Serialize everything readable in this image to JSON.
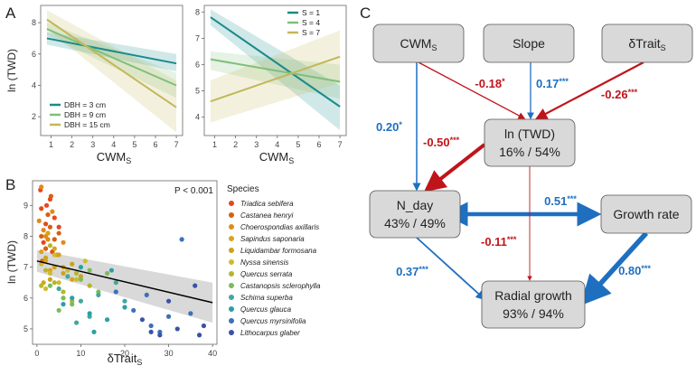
{
  "colors": {
    "blue": "#1f6fc0",
    "red": "#c0141b",
    "teal": "#1b8a8a",
    "green": "#7fbf7a",
    "olive": "#c2b75a",
    "band": "#c9c9c9",
    "node": "#d9d9d9"
  },
  "panel_labels": [
    "A",
    "B",
    "C"
  ],
  "chart_data": [
    {
      "panel": "A-left",
      "type": "line",
      "xlabel_main": "CWM",
      "xlabel_sub": "S",
      "ylabel": "ln (TWD)",
      "xlim": [
        0.5,
        7.3
      ],
      "ylim": [
        0.8,
        9.1
      ],
      "xticks": [
        1,
        2,
        3,
        4,
        5,
        6,
        7
      ],
      "yticks": [
        2,
        4,
        6,
        8
      ],
      "legend_position": "bottom-left",
      "series": [
        {
          "name": "DBH = 3 cm",
          "color_key": "teal",
          "x": [
            0.8,
            7
          ],
          "y": [
            7.0,
            5.4
          ],
          "ci_low": [
            6.6,
            4.9
          ],
          "ci_high": [
            7.4,
            6.0
          ]
        },
        {
          "name": "DBH = 9 cm",
          "color_key": "green",
          "x": [
            0.8,
            7
          ],
          "y": [
            7.6,
            4.0
          ],
          "ci_low": [
            7.2,
            3.2
          ],
          "ci_high": [
            8.0,
            4.8
          ]
        },
        {
          "name": "DBH = 15 cm",
          "color_key": "olive",
          "x": [
            0.8,
            7
          ],
          "y": [
            8.2,
            2.6
          ],
          "ci_low": [
            7.6,
            1.0
          ],
          "ci_high": [
            8.8,
            4.3
          ]
        }
      ]
    },
    {
      "panel": "A-right",
      "type": "line",
      "xlabel_main": "CWM",
      "xlabel_sub": "S",
      "xlim": [
        0.5,
        7.3
      ],
      "ylim": [
        3.3,
        8.25
      ],
      "xticks": [
        1,
        2,
        3,
        4,
        5,
        6,
        7
      ],
      "yticks": [
        4,
        5,
        6,
        7,
        8
      ],
      "legend_position": "top-right",
      "series": [
        {
          "name": "S = 1",
          "color_key": "teal",
          "x": [
            0.8,
            7
          ],
          "y": [
            7.8,
            4.4
          ],
          "ci_low": [
            7.5,
            3.5
          ],
          "ci_high": [
            8.1,
            5.2
          ]
        },
        {
          "name": "S = 4",
          "color_key": "green",
          "x": [
            0.8,
            7
          ],
          "y": [
            6.2,
            5.35
          ],
          "ci_low": [
            5.8,
            4.7
          ],
          "ci_high": [
            6.5,
            6.0
          ]
        },
        {
          "name": "S = 7",
          "color_key": "olive",
          "x": [
            0.8,
            7
          ],
          "y": [
            4.6,
            6.3
          ],
          "ci_low": [
            3.8,
            5.3
          ],
          "ci_high": [
            5.4,
            7.3
          ]
        }
      ]
    },
    {
      "panel": "B",
      "type": "scatter",
      "xlabel_main": "δTrait",
      "xlabel_sub": "S",
      "ylabel": "ln (TWD)",
      "xlim": [
        -1,
        41
      ],
      "ylim": [
        4.5,
        9.8
      ],
      "xticks": [
        0,
        10,
        20,
        30,
        40
      ],
      "yticks": [
        5,
        6,
        7,
        8,
        9
      ],
      "annotation": "P < 0.001",
      "legend_title": "Species",
      "legend_position": "right",
      "fit": {
        "x": [
          0,
          40
        ],
        "y": [
          7.2,
          5.85
        ],
        "ci_low": [
          6.85,
          5.2
        ],
        "ci_high": [
          7.55,
          6.5
        ]
      },
      "species": [
        {
          "name": "Triadica sebifera",
          "color": "#e8471e",
          "x": [
            1,
            2,
            3,
            1.5,
            2.5,
            4,
            0.8,
            3.5,
            2.2,
            5
          ],
          "y": [
            8.9,
            8.4,
            9.2,
            7.8,
            8.1,
            8.6,
            9.5,
            7.5,
            9.0,
            8.3
          ]
        },
        {
          "name": "Castanea henryi",
          "color": "#d7600f",
          "x": [
            1,
            2,
            3,
            4,
            2.5,
            1.2,
            5,
            3.2
          ],
          "y": [
            8.0,
            7.6,
            8.3,
            7.9,
            8.7,
            7.2,
            8.1,
            9.3
          ]
        },
        {
          "name": "Choerospondias axillaris",
          "color": "#e08a19",
          "x": [
            0.5,
            1.5,
            2.5,
            3.5,
            4.5,
            6,
            1,
            2
          ],
          "y": [
            8.5,
            8.2,
            7.9,
            8.8,
            7.4,
            7.8,
            9.6,
            8.0
          ]
        },
        {
          "name": "Sapindus saponaria",
          "color": "#d9a31c",
          "x": [
            1,
            2,
            3,
            4,
            6,
            8,
            2.5,
            1.5
          ],
          "y": [
            7.5,
            7.2,
            6.9,
            7.6,
            7.0,
            6.6,
            8.1,
            6.5
          ]
        },
        {
          "name": "Liquidambar formosana",
          "color": "#c9a41a",
          "x": [
            2,
            4,
            6,
            8,
            10,
            5,
            3,
            7
          ],
          "y": [
            7.3,
            7.0,
            6.8,
            7.1,
            6.7,
            7.4,
            6.6,
            6.9
          ]
        },
        {
          "name": "Nyssa sinensis",
          "color": "#cdbd2c",
          "x": [
            1,
            3,
            5,
            7,
            9,
            11,
            4,
            2
          ],
          "y": [
            7.1,
            6.8,
            6.5,
            6.9,
            6.6,
            7.2,
            7.4,
            6.3
          ]
        },
        {
          "name": "Quercus serrata",
          "color": "#b5b62c",
          "x": [
            2,
            4,
            6,
            9,
            12,
            3,
            8,
            1
          ],
          "y": [
            6.9,
            6.5,
            6.2,
            6.8,
            6.4,
            7.7,
            5.9,
            6.4
          ]
        },
        {
          "name": "Castanopsis sclerophylla",
          "color": "#7dbb5b",
          "x": [
            3,
            6,
            10,
            14,
            8,
            12,
            5,
            16
          ],
          "y": [
            6.4,
            6.0,
            6.6,
            6.2,
            5.8,
            6.9,
            5.6,
            6.8
          ]
        },
        {
          "name": "Schima superba",
          "color": "#43a89a",
          "x": [
            5,
            10,
            14,
            18,
            12,
            7,
            20,
            9
          ],
          "y": [
            6.3,
            5.9,
            6.1,
            6.5,
            5.4,
            6.7,
            5.9,
            5.2
          ]
        },
        {
          "name": "Quercus glauca",
          "color": "#2aa0a8",
          "x": [
            8,
            12,
            16,
            20,
            13,
            6,
            17,
            10
          ],
          "y": [
            6.0,
            5.5,
            5.3,
            5.7,
            4.9,
            5.8,
            6.9,
            7.0
          ]
        },
        {
          "name": "Quercus myrsinifolia",
          "color": "#3d70b8",
          "x": [
            18,
            22,
            26,
            30,
            33,
            35,
            25,
            28
          ],
          "y": [
            6.2,
            5.6,
            5.1,
            5.4,
            7.9,
            5.5,
            6.1,
            4.9
          ]
        },
        {
          "name": "Lithocarpus glaber",
          "color": "#3a52a8",
          "x": [
            24,
            28,
            32,
            36,
            38,
            30,
            26,
            37
          ],
          "y": [
            5.3,
            4.8,
            5.0,
            6.4,
            5.1,
            5.9,
            4.9,
            4.8
          ]
        }
      ]
    },
    {
      "panel": "C",
      "type": "diagram",
      "nodes": [
        {
          "id": "cwms",
          "main": "CWM",
          "sub": "S",
          "r2": ""
        },
        {
          "id": "slope",
          "main": "Slope",
          "sub": "",
          "r2": ""
        },
        {
          "id": "dtrait",
          "main": "δTrait",
          "sub": "S",
          "r2": ""
        },
        {
          "id": "lntwd",
          "main": "ln (TWD)",
          "sub": "",
          "r2": "16% / 54%"
        },
        {
          "id": "nday",
          "main": "N_day",
          "sub": "",
          "r2": "43% / 49%"
        },
        {
          "id": "growth",
          "main": "Growth rate",
          "sub": "",
          "r2": ""
        },
        {
          "id": "radial",
          "main": "Radial growth",
          "sub": "",
          "r2": "93% / 94%"
        }
      ],
      "paths": [
        {
          "from": "cwms",
          "to": "lntwd",
          "coef": "-0.18",
          "sig": "*",
          "sign": "negative"
        },
        {
          "from": "slope",
          "to": "lntwd",
          "coef": "0.17",
          "sig": "***",
          "sign": "positive"
        },
        {
          "from": "dtrait",
          "to": "lntwd",
          "coef": "-0.26",
          "sig": "***",
          "sign": "negative"
        },
        {
          "from": "cwms",
          "to": "nday",
          "coef": "0.20",
          "sig": "*",
          "sign": "positive"
        },
        {
          "from": "lntwd",
          "to": "nday",
          "coef": "-0.50",
          "sig": "***",
          "sign": "negative"
        },
        {
          "from": "nday",
          "to": "growth",
          "coef": "0.51",
          "sig": "***",
          "sign": "positive",
          "bidirectional": true
        },
        {
          "from": "lntwd",
          "to": "radial",
          "coef": "-0.11",
          "sig": "***",
          "sign": "negative"
        },
        {
          "from": "nday",
          "to": "radial",
          "coef": "0.37",
          "sig": "***",
          "sign": "positive"
        },
        {
          "from": "growth",
          "to": "radial",
          "coef": "0.80",
          "sig": "***",
          "sign": "positive"
        }
      ]
    }
  ]
}
